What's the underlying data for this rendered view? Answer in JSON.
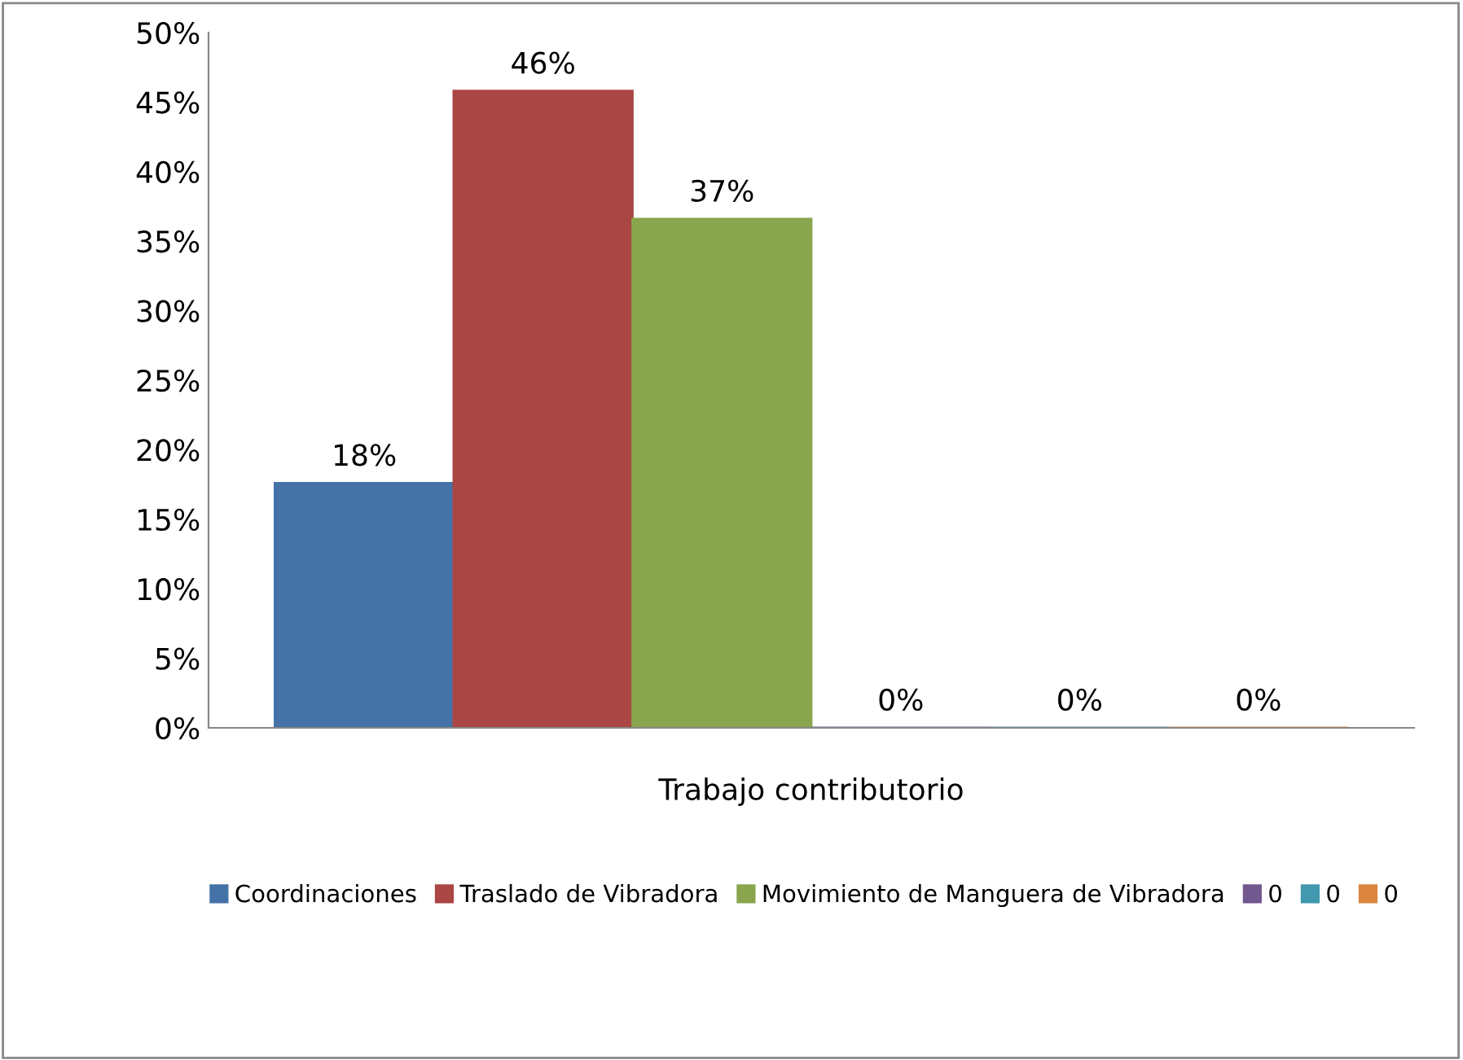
{
  "chart_data": {
    "type": "bar",
    "categories": [
      "Trabajo contributorio"
    ],
    "series": [
      {
        "name": "Coordinaciones",
        "color": "#4572a7",
        "values": [
          17.6
        ],
        "value_labels": [
          "18%"
        ]
      },
      {
        "name": "Traslado de Vibradora",
        "color": "#aa4643",
        "values": [
          45.8
        ],
        "value_labels": [
          "46%"
        ]
      },
      {
        "name": "Movimiento de Manguera de Vibradora",
        "color": "#89a54e",
        "values": [
          36.6
        ],
        "value_labels": [
          "37%"
        ]
      },
      {
        "name": "0",
        "color": "#71588f",
        "values": [
          0
        ],
        "value_labels": [
          "0%"
        ]
      },
      {
        "name": "0",
        "color": "#4198af",
        "values": [
          0
        ],
        "value_labels": [
          "0%"
        ]
      },
      {
        "name": "0",
        "color": "#db843d",
        "values": [
          0
        ],
        "value_labels": [
          "0%"
        ]
      }
    ],
    "ylim": [
      0,
      50
    ],
    "yticks": [
      {
        "value": 0,
        "label": "0%"
      },
      {
        "value": 5,
        "label": "5%"
      },
      {
        "value": 10,
        "label": "10%"
      },
      {
        "value": 15,
        "label": "15%"
      },
      {
        "value": 20,
        "label": "20%"
      },
      {
        "value": 25,
        "label": "25%"
      },
      {
        "value": 30,
        "label": "30%"
      },
      {
        "value": 35,
        "label": "35%"
      },
      {
        "value": 40,
        "label": "40%"
      },
      {
        "value": 45,
        "label": "45%"
      },
      {
        "value": 50,
        "label": "50%"
      }
    ],
    "grid": false,
    "legend": "bottom"
  }
}
